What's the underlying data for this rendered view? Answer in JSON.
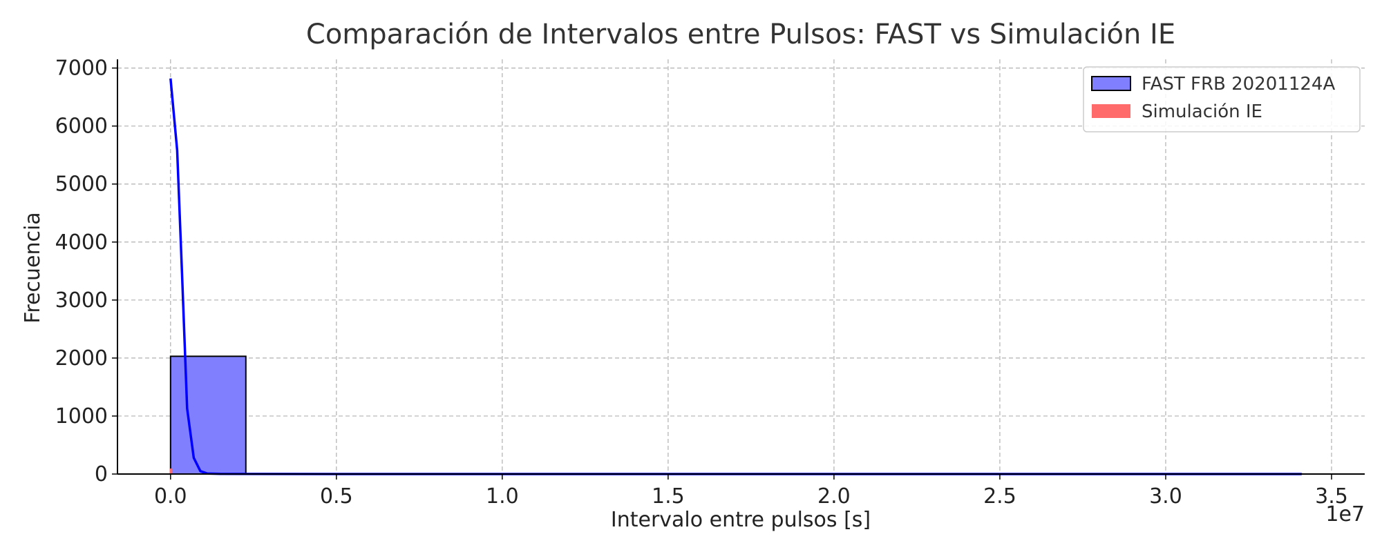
{
  "chart_data": {
    "type": "bar",
    "title": "Comparación de Intervalos entre Pulsos: FAST vs Simulación IE",
    "xlabel": "Intervalo entre pulsos [s]",
    "ylabel": "Frecuencia",
    "x_offset_label": "1e7",
    "xlim": [
      -0.16,
      3.6
    ],
    "ylim": [
      0,
      7150
    ],
    "x_scale_factor": 10000000,
    "xticks": [
      0.0,
      0.5,
      1.0,
      1.5,
      2.0,
      2.5,
      3.0,
      3.5
    ],
    "xtick_labels": [
      "0.0",
      "0.5",
      "1.0",
      "1.5",
      "2.0",
      "2.5",
      "3.0",
      "3.5"
    ],
    "yticks": [
      0,
      1000,
      2000,
      3000,
      4000,
      5000,
      6000,
      7000
    ],
    "ytick_labels": [
      "0",
      "1000",
      "2000",
      "3000",
      "4000",
      "5000",
      "6000",
      "7000"
    ],
    "grid": true,
    "legend_position": "top-right",
    "legend": [
      {
        "name": "FAST FRB 20201124A",
        "color": "#8080ff",
        "edge": "#000000"
      },
      {
        "name": "Simulación IE",
        "color": "#ff6b6b",
        "edge": "none"
      }
    ],
    "histogram": {
      "name": "FAST FRB 20201124A",
      "color": "#8080ff",
      "bins": [
        {
          "x0": 0.0,
          "x1": 0.227,
          "count": 2030
        },
        {
          "x0": 0.227,
          "x1": 3.41,
          "count": 2
        }
      ]
    },
    "simulation": {
      "name": "Simulación IE",
      "color": "#ff6b6b",
      "marker_x": 0.0
    },
    "density_line": {
      "color": "#0000ff",
      "x": [
        0.0,
        0.02,
        0.035,
        0.05,
        0.07,
        0.09,
        0.11,
        0.15,
        0.5,
        1.0,
        2.0,
        3.0,
        3.41
      ],
      "y": [
        6820,
        5580,
        3400,
        1130,
        280,
        50,
        10,
        2,
        0,
        0,
        0,
        0,
        0
      ]
    }
  }
}
